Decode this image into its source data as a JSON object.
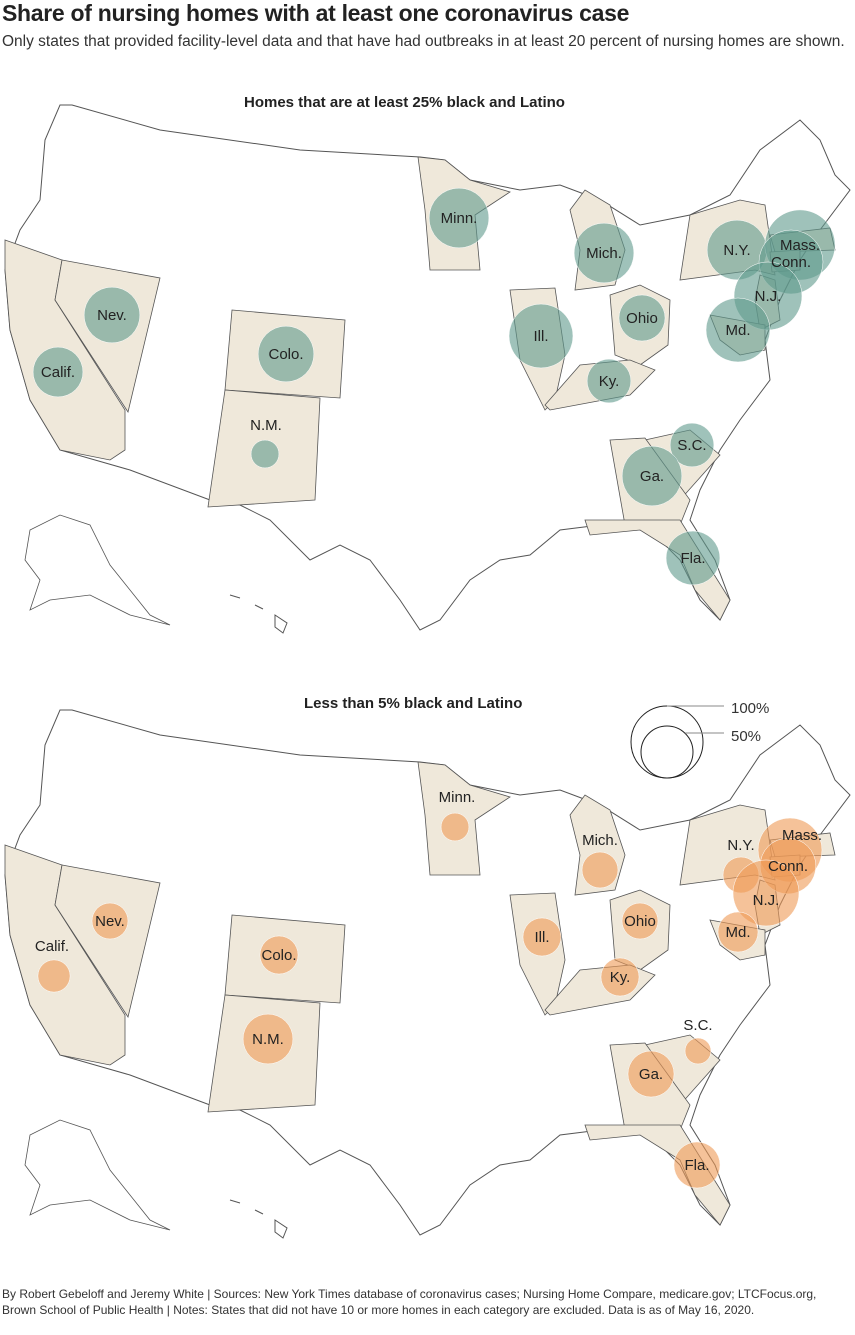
{
  "title": "Share of nursing homes with at least one coronavirus case",
  "subtitle": "Only states that provided facility-level data and that have had outbreaks in at least 20 percent of nursing homes are shown.",
  "legend": {
    "large": "100%",
    "small": "50%"
  },
  "colors": {
    "panel1": "#5f9a8c",
    "panel2": "#ee9a55",
    "state_fill": "#efe8da",
    "outline": "#555555"
  },
  "panels": [
    {
      "title": "Homes that are at least 25% black and Latino",
      "states": [
        [
          "Minn.",
          69
        ],
        [
          "Mich.",
          69
        ],
        [
          "N.Y.",
          69
        ],
        [
          "Mass.",
          95
        ],
        [
          "Conn.",
          79
        ],
        [
          "N.J.",
          89
        ],
        [
          "Md.",
          79
        ],
        [
          "Nev.",
          60
        ],
        [
          "Calif.",
          48
        ],
        [
          "Colo.",
          60
        ],
        [
          "N.M.",
          15
        ],
        [
          "Ill.",
          79
        ],
        [
          "Ohio",
          41
        ],
        [
          "Ky.",
          37
        ],
        [
          "S.C.",
          37
        ],
        [
          "Ga.",
          69
        ],
        [
          "Fla.",
          56
        ]
      ]
    },
    {
      "title": "Less than 5% black and Latino",
      "states": [
        [
          "Minn.",
          15
        ],
        [
          "Mich.",
          25
        ],
        [
          "N.Y.",
          25
        ],
        [
          "Mass.",
          79
        ],
        [
          "Conn.",
          60
        ],
        [
          "N.J.",
          84
        ],
        [
          "Md.",
          31
        ],
        [
          "Nev.",
          25
        ],
        [
          "Calif.",
          20
        ],
        [
          "Colo.",
          28
        ],
        [
          "N.M.",
          48
        ],
        [
          "Ill.",
          28
        ],
        [
          "Ohio",
          25
        ],
        [
          "Ky.",
          28
        ],
        [
          "S.C.",
          13
        ],
        [
          "Ga.",
          41
        ],
        [
          "Fla.",
          41
        ]
      ]
    }
  ],
  "footer": "By Robert Gebeloff and Jeremy White | Sources: New York Times database of coronavirus cases; Nursing Home Compare, medicare.gov; LTCFocus.org, Brown School of Public Health | Notes: States that did not have 10 or more homes in each category are excluded. Data is as of May 16, 2020."
}
